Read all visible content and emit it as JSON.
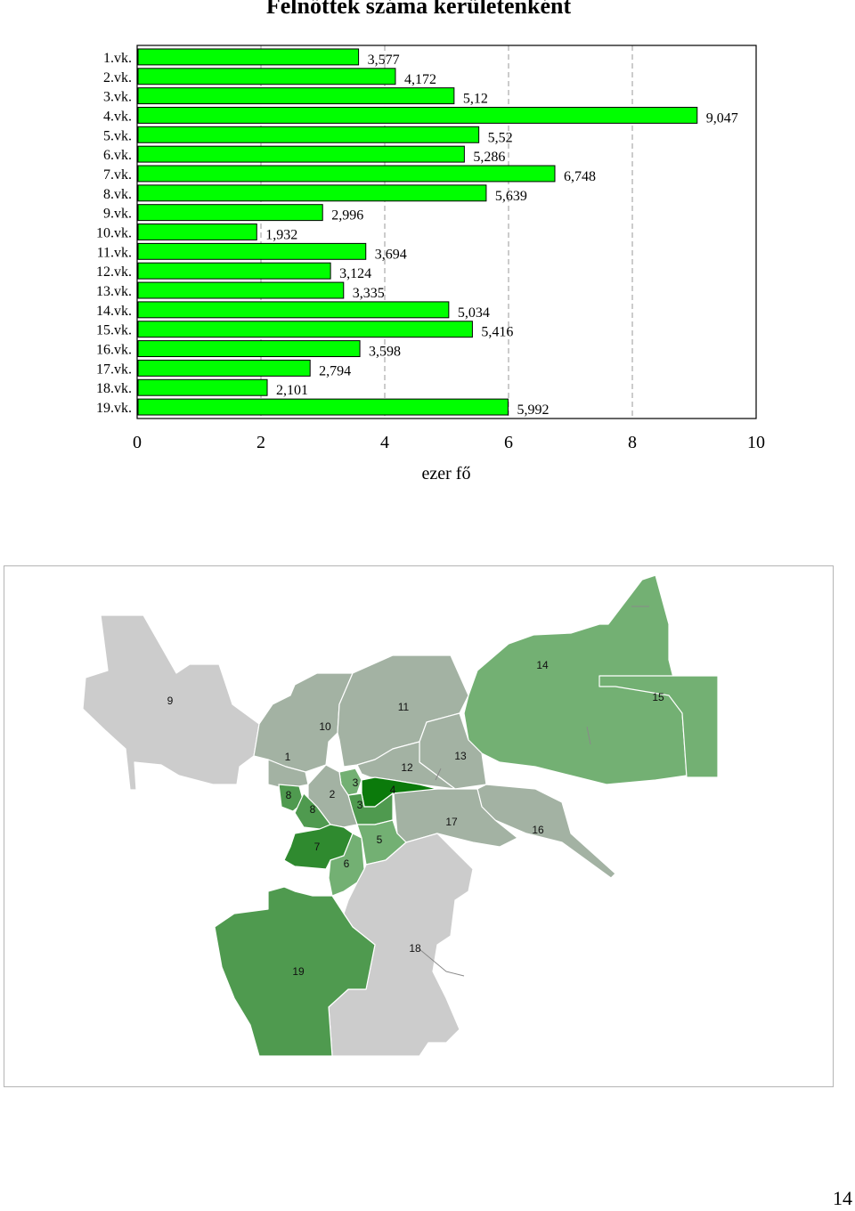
{
  "chart_data": {
    "type": "bar",
    "orientation": "horizontal",
    "title": "Felnőttek száma kerületenként",
    "xlabel": "ezer fő",
    "ylabel": "",
    "xlim": [
      0,
      10
    ],
    "xticks": [
      "0",
      "2",
      "4",
      "6",
      "8",
      "10"
    ],
    "grid": "vertical-dashed",
    "categories": [
      "1.vk.",
      "2.vk.",
      "3.vk.",
      "4.vk.",
      "5.vk.",
      "6.vk.",
      "7.vk.",
      "8.vk.",
      "9.vk.",
      "10.vk.",
      "11.vk.",
      "12.vk.",
      "13.vk.",
      "14.vk.",
      "15.vk.",
      "16.vk.",
      "17.vk.",
      "18.vk.",
      "19.vk."
    ],
    "values": [
      3.577,
      4.172,
      5.12,
      9.047,
      5.52,
      5.286,
      6.748,
      5.639,
      2.996,
      1.932,
      3.694,
      3.124,
      3.335,
      5.034,
      5.416,
      3.598,
      2.794,
      2.101,
      5.992
    ],
    "value_labels": [
      "3,577",
      "4,172",
      "5,12",
      "9,047",
      "5,52",
      "5,286",
      "6,748",
      "5,639",
      "2,996",
      "1,932",
      "3,694",
      "3,124",
      "3,335",
      "5,034",
      "5,416",
      "3,598",
      "2,794",
      "2,101",
      "5,992"
    ],
    "bar_color": "#00ff00"
  },
  "map": {
    "district_labels": [
      "1",
      "2",
      "3",
      "3",
      "4",
      "5",
      "6",
      "7",
      "8",
      "8",
      "9",
      "10",
      "11",
      "12",
      "13",
      "14",
      "15",
      "16",
      "17",
      "18",
      "19"
    ],
    "colors": {
      "light_gray": "#cccccc",
      "mid_gray": "#a3b2a3",
      "light_green": "#73b073",
      "mid_green": "#4f9a4f",
      "dark_green": "#2f8a2f",
      "darkest_green": "#0b7a0b"
    }
  },
  "page_number": "14"
}
